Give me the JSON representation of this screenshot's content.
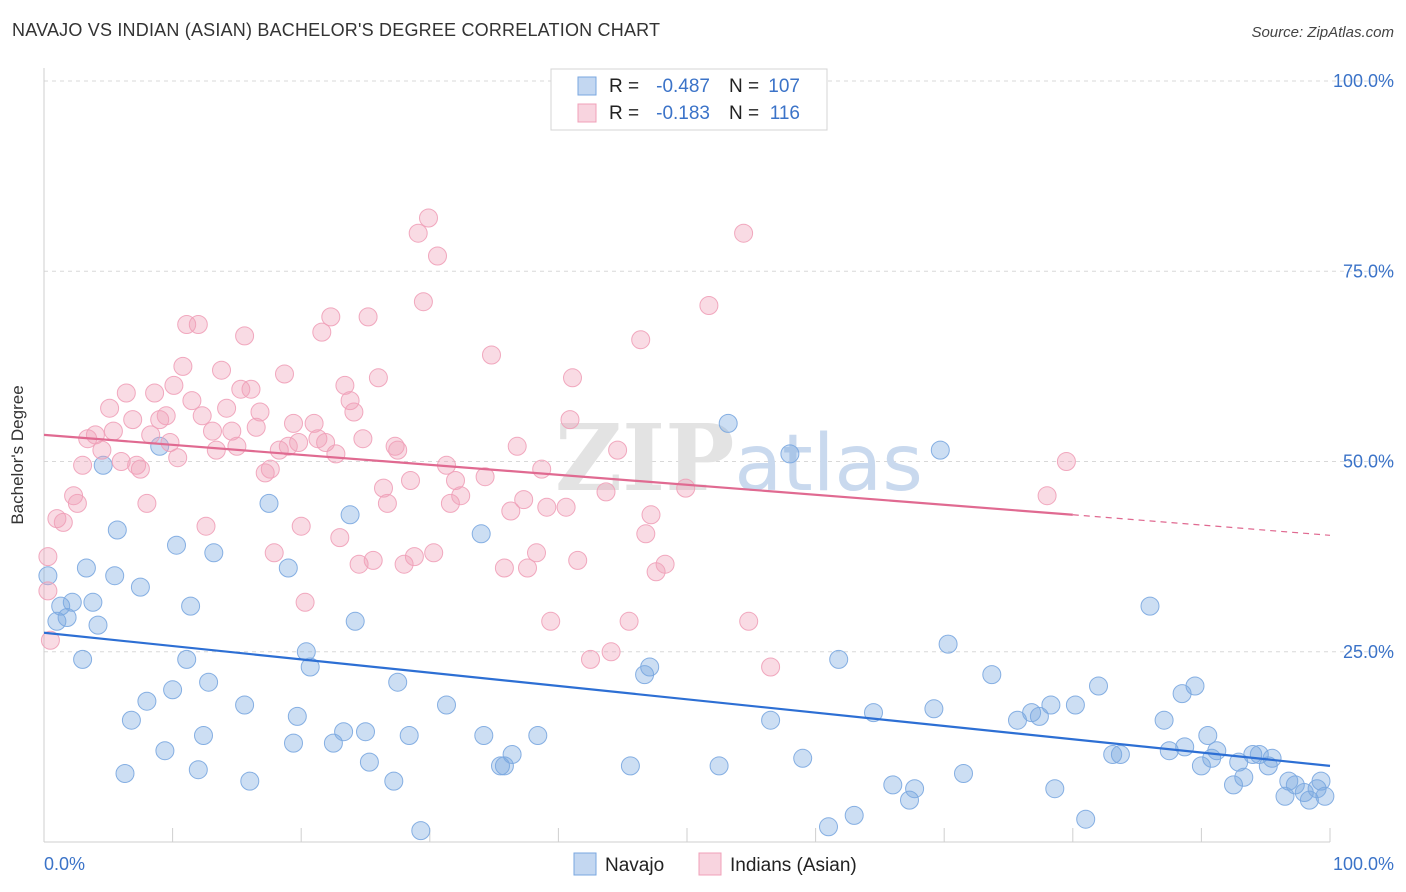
{
  "title": "NAVAJO VS INDIAN (ASIAN) BACHELOR'S DEGREE CORRELATION CHART",
  "source": "Source: ZipAtlas.com",
  "colors": {
    "navajo": "#7aa7e0",
    "navajo_line": "#2d6fd4",
    "indian": "#f0a0b8",
    "indian_line": "#e06a91",
    "tick_blue": "#3b73c8",
    "grid": "#d8d8d8"
  },
  "chart_data": {
    "type": "scatter",
    "title": "NAVAJO VS INDIAN (ASIAN) BACHELOR'S DEGREE CORRELATION CHART",
    "xlabel": "",
    "ylabel": "Bachelor's Degree",
    "xlim": [
      0,
      100
    ],
    "ylim": [
      0,
      100
    ],
    "x_tick_labels": [
      "0.0%",
      "100.0%"
    ],
    "y_ticks": [
      25,
      50,
      75,
      100
    ],
    "y_tick_labels": [
      "25.0%",
      "50.0%",
      "75.0%",
      "100.0%"
    ],
    "legend": [
      {
        "swatch": "navajo",
        "r_label": "R =",
        "r_value": "-0.487",
        "n_label": "N =",
        "n_value": "107"
      },
      {
        "swatch": "indian",
        "r_label": "R =",
        "r_value": "-0.183",
        "n_label": "N =",
        "n_value": "116"
      }
    ],
    "bottom_legend": [
      "Navajo",
      "Indians (Asian)"
    ],
    "watermark": "ZIPatlas",
    "series": [
      {
        "name": "Navajo",
        "trend": {
          "x": [
            0,
            100
          ],
          "y": [
            27.5,
            10.0
          ]
        },
        "points": [
          [
            0.3,
            35
          ],
          [
            1,
            29
          ],
          [
            1.3,
            31
          ],
          [
            1.8,
            29.5
          ],
          [
            2.2,
            31.5
          ],
          [
            3,
            24
          ],
          [
            3.3,
            36
          ],
          [
            3.8,
            31.5
          ],
          [
            4.2,
            28.5
          ],
          [
            4.6,
            49.5
          ],
          [
            5.5,
            35
          ],
          [
            5.7,
            41
          ],
          [
            6.3,
            9
          ],
          [
            6.8,
            16
          ],
          [
            7.5,
            33.5
          ],
          [
            8,
            18.5
          ],
          [
            9,
            52
          ],
          [
            9.4,
            12
          ],
          [
            10,
            20
          ],
          [
            10.3,
            39
          ],
          [
            11.1,
            24
          ],
          [
            11.4,
            31
          ],
          [
            12,
            9.5
          ],
          [
            12.4,
            14
          ],
          [
            12.8,
            21
          ],
          [
            13.2,
            38
          ],
          [
            15.6,
            18
          ],
          [
            16,
            8
          ],
          [
            17.5,
            44.5
          ],
          [
            19,
            36
          ],
          [
            19.4,
            13
          ],
          [
            19.7,
            16.5
          ],
          [
            20.4,
            25
          ],
          [
            20.7,
            23
          ],
          [
            22.5,
            13
          ],
          [
            23.3,
            14.5
          ],
          [
            23.8,
            43
          ],
          [
            24.2,
            29
          ],
          [
            25,
            14.5
          ],
          [
            25.3,
            10.5
          ],
          [
            27.2,
            8
          ],
          [
            27.5,
            21
          ],
          [
            28.4,
            14
          ],
          [
            29.3,
            1.5
          ],
          [
            31.3,
            18
          ],
          [
            34,
            40.5
          ],
          [
            34.2,
            14
          ],
          [
            35.5,
            10
          ],
          [
            35.8,
            10
          ],
          [
            36.4,
            11.5
          ],
          [
            38.4,
            14
          ],
          [
            45.6,
            10
          ],
          [
            46.7,
            22
          ],
          [
            47.1,
            23
          ],
          [
            52.5,
            10
          ],
          [
            53.2,
            55
          ],
          [
            56.5,
            16
          ],
          [
            58,
            51
          ],
          [
            59,
            11
          ],
          [
            61,
            2
          ],
          [
            61.8,
            24
          ],
          [
            63,
            3.5
          ],
          [
            64.5,
            17
          ],
          [
            66,
            7.5
          ],
          [
            67.3,
            5.5
          ],
          [
            67.7,
            7
          ],
          [
            69.2,
            17.5
          ],
          [
            69.7,
            51.5
          ],
          [
            70.3,
            26
          ],
          [
            71.5,
            9
          ],
          [
            73.7,
            22
          ],
          [
            75.7,
            16
          ],
          [
            76.8,
            17
          ],
          [
            77.4,
            16.5
          ],
          [
            78.3,
            18
          ],
          [
            78.6,
            7
          ],
          [
            80.2,
            18
          ],
          [
            81,
            3
          ],
          [
            82,
            20.5
          ],
          [
            83.1,
            11.5
          ],
          [
            83.7,
            11.5
          ],
          [
            86,
            31
          ],
          [
            87.1,
            16
          ],
          [
            87.5,
            12
          ],
          [
            88.5,
            19.5
          ],
          [
            88.7,
            12.5
          ],
          [
            89.5,
            20.5
          ],
          [
            90,
            10
          ],
          [
            90.5,
            14
          ],
          [
            90.8,
            11
          ],
          [
            91.2,
            12
          ],
          [
            92.5,
            7.5
          ],
          [
            92.9,
            10.5
          ],
          [
            93.3,
            8.5
          ],
          [
            94,
            11.5
          ],
          [
            94.5,
            11.5
          ],
          [
            95.2,
            10
          ],
          [
            95.5,
            11
          ],
          [
            96.5,
            6
          ],
          [
            96.8,
            8
          ],
          [
            97.3,
            7.5
          ],
          [
            98,
            6.5
          ],
          [
            98.4,
            5.5
          ],
          [
            99,
            7
          ],
          [
            99.3,
            8
          ],
          [
            99.6,
            6
          ]
        ]
      },
      {
        "name": "Indians (Asian)",
        "trend": {
          "x": [
            0,
            80
          ],
          "y": [
            53.5,
            43.0
          ]
        },
        "trend_dashed": {
          "x": [
            80,
            100
          ],
          "y": [
            43.0,
            40.3
          ]
        },
        "points": [
          [
            0.3,
            37.5
          ],
          [
            0.3,
            33
          ],
          [
            0.5,
            26.5
          ],
          [
            1,
            42.5
          ],
          [
            1.5,
            42
          ],
          [
            2.3,
            45.5
          ],
          [
            2.6,
            44.5
          ],
          [
            3,
            49.5
          ],
          [
            3.4,
            53
          ],
          [
            4,
            53.5
          ],
          [
            4.5,
            51.5
          ],
          [
            5.1,
            57
          ],
          [
            5.4,
            54
          ],
          [
            6,
            50
          ],
          [
            6.4,
            59
          ],
          [
            6.9,
            55.5
          ],
          [
            7.2,
            49.5
          ],
          [
            7.5,
            49
          ],
          [
            8,
            44.5
          ],
          [
            8.3,
            53.5
          ],
          [
            8.6,
            59
          ],
          [
            9,
            55.5
          ],
          [
            9.5,
            56
          ],
          [
            9.8,
            52.5
          ],
          [
            10.1,
            60
          ],
          [
            10.4,
            50.5
          ],
          [
            10.8,
            62.5
          ],
          [
            11.1,
            68
          ],
          [
            11.5,
            58
          ],
          [
            12,
            68
          ],
          [
            12.3,
            56
          ],
          [
            12.6,
            41.5
          ],
          [
            13.1,
            54
          ],
          [
            13.4,
            51.5
          ],
          [
            13.8,
            62
          ],
          [
            14.2,
            57
          ],
          [
            14.6,
            54
          ],
          [
            15,
            52
          ],
          [
            15.3,
            59.5
          ],
          [
            15.6,
            66.5
          ],
          [
            16.1,
            59.5
          ],
          [
            16.5,
            54.5
          ],
          [
            16.8,
            56.5
          ],
          [
            17.2,
            48.5
          ],
          [
            17.6,
            49
          ],
          [
            17.9,
            38
          ],
          [
            18.3,
            51.5
          ],
          [
            18.7,
            61.5
          ],
          [
            19,
            52
          ],
          [
            19.4,
            55
          ],
          [
            19.8,
            52.5
          ],
          [
            20,
            41.5
          ],
          [
            20.3,
            31.5
          ],
          [
            21,
            55
          ],
          [
            21.3,
            53
          ],
          [
            21.6,
            67
          ],
          [
            21.9,
            52.5
          ],
          [
            22.3,
            69
          ],
          [
            22.7,
            51
          ],
          [
            23,
            40
          ],
          [
            23.4,
            60
          ],
          [
            23.8,
            58
          ],
          [
            24.1,
            56.5
          ],
          [
            24.5,
            36.5
          ],
          [
            24.8,
            53
          ],
          [
            25.2,
            69
          ],
          [
            25.6,
            37
          ],
          [
            26,
            61
          ],
          [
            26.4,
            46.5
          ],
          [
            26.7,
            44.5
          ],
          [
            27.3,
            52
          ],
          [
            27.5,
            51.5
          ],
          [
            28,
            36.5
          ],
          [
            28.5,
            47.5
          ],
          [
            28.8,
            37.5
          ],
          [
            29.1,
            80
          ],
          [
            29.5,
            71
          ],
          [
            29.9,
            82
          ],
          [
            30.3,
            38
          ],
          [
            30.6,
            77
          ],
          [
            31.3,
            49.5
          ],
          [
            31.6,
            44.5
          ],
          [
            32,
            47.5
          ],
          [
            32.4,
            45.5
          ],
          [
            34.3,
            48
          ],
          [
            34.8,
            64
          ],
          [
            35.8,
            36
          ],
          [
            36.3,
            43.5
          ],
          [
            36.8,
            52
          ],
          [
            37.3,
            45
          ],
          [
            37.6,
            36
          ],
          [
            38.3,
            38
          ],
          [
            38.7,
            49
          ],
          [
            39.1,
            44
          ],
          [
            39.4,
            29
          ],
          [
            40.6,
            44
          ],
          [
            40.9,
            55.5
          ],
          [
            41.1,
            61
          ],
          [
            41.5,
            37
          ],
          [
            42.5,
            24
          ],
          [
            43.7,
            46
          ],
          [
            44.1,
            25
          ],
          [
            44.6,
            51.5
          ],
          [
            45.5,
            29
          ],
          [
            46.4,
            66
          ],
          [
            46.8,
            40.5
          ],
          [
            47.2,
            43
          ],
          [
            47.6,
            35.5
          ],
          [
            48.3,
            36.5
          ],
          [
            49.9,
            46.5
          ],
          [
            51.7,
            70.5
          ],
          [
            54.4,
            80
          ],
          [
            54.8,
            29
          ],
          [
            56.5,
            23
          ],
          [
            78,
            45.5
          ],
          [
            79.5,
            50
          ]
        ]
      }
    ]
  }
}
